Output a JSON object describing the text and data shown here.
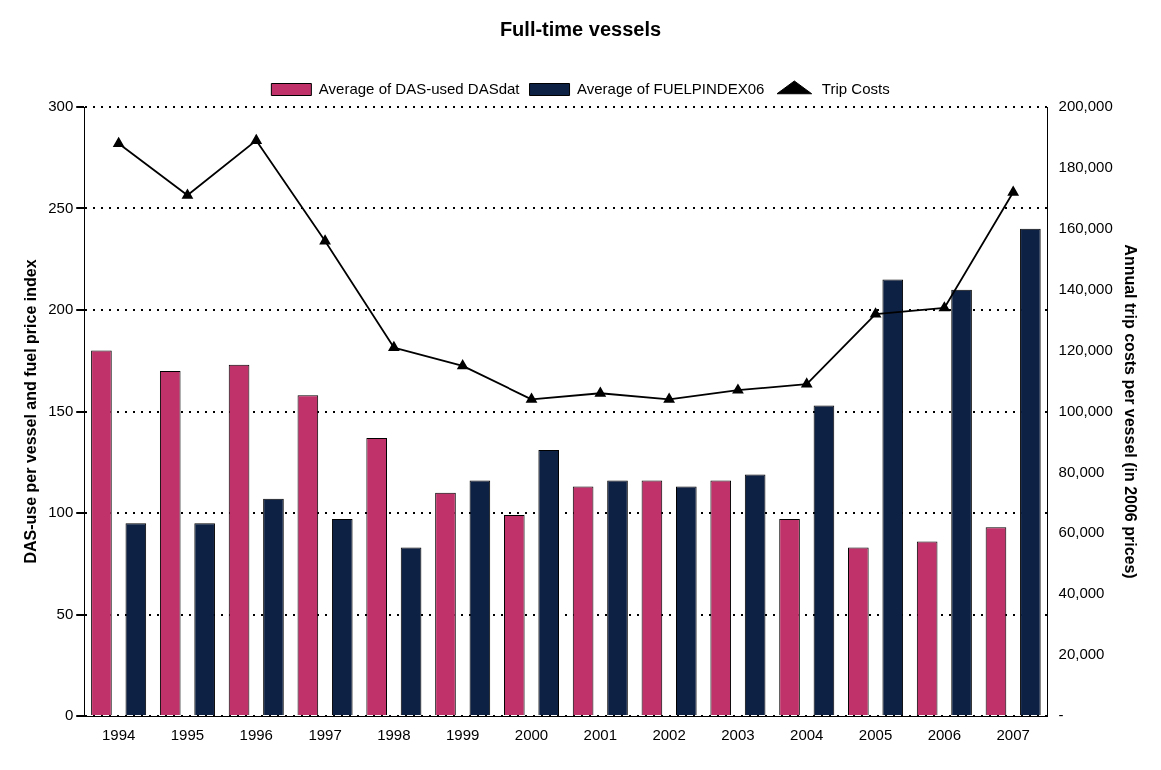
{
  "chart_data": {
    "type": "bar",
    "title": "Full-time vessels",
    "ylabel": "DAS-use per vessel and fuel price index",
    "y2label": "Annual trip costs per vessel (in 2006 prices)",
    "categories": [
      "1994",
      "1995",
      "1996",
      "1997",
      "1998",
      "1999",
      "2000",
      "2001",
      "2002",
      "2003",
      "2004",
      "2005",
      "2006",
      "2007"
    ],
    "series": [
      {
        "name": "Average of DAS-used DASdat",
        "color": "#c0336a",
        "values": [
          180,
          170,
          173,
          158,
          137,
          110,
          99,
          113,
          116,
          116,
          97,
          83,
          86,
          93
        ]
      },
      {
        "name": "Average of FUELPINDEX06",
        "color": "#0d2145",
        "values": [
          95,
          95,
          107,
          97,
          83,
          116,
          131,
          116,
          113,
          119,
          153,
          215,
          210,
          240
        ]
      },
      {
        "name": "Trip Costs",
        "type": "line",
        "axis": "y2",
        "color": "#000000",
        "marker": "triangle",
        "values": [
          188000,
          171000,
          189000,
          156000,
          121000,
          115000,
          104000,
          106000,
          104000,
          107000,
          109000,
          132000,
          134000,
          172000
        ]
      }
    ],
    "ylim": [
      0,
      300
    ],
    "yticks": [
      0,
      50,
      100,
      150,
      200,
      250,
      300
    ],
    "y2lim": [
      0,
      200000
    ],
    "y2ticks": [
      {
        "value": 0,
        "label": "-"
      },
      {
        "value": 20000,
        "label": "20,000"
      },
      {
        "value": 40000,
        "label": "40,000"
      },
      {
        "value": 60000,
        "label": "60,000"
      },
      {
        "value": 80000,
        "label": "80,000"
      },
      {
        "value": 100000,
        "label": "100,000"
      },
      {
        "value": 120000,
        "label": "120,000"
      },
      {
        "value": 140000,
        "label": "140,000"
      },
      {
        "value": 160000,
        "label": "160,000"
      },
      {
        "value": 180000,
        "label": "180,000"
      },
      {
        "value": 200000,
        "label": "200,000"
      }
    ],
    "grid": "y",
    "legend": "top"
  }
}
